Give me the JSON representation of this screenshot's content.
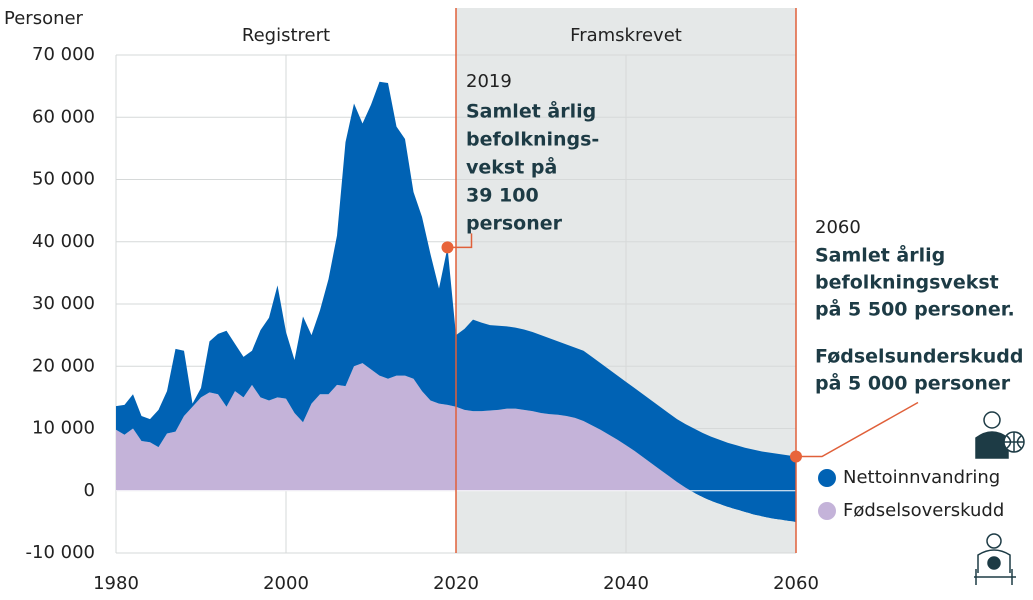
{
  "chart_data": {
    "type": "stacked_area",
    "ylabel": "Personer",
    "x": [
      1980,
      1981,
      1982,
      1983,
      1984,
      1985,
      1986,
      1987,
      1988,
      1989,
      1990,
      1991,
      1992,
      1993,
      1994,
      1995,
      1996,
      1997,
      1998,
      1999,
      2000,
      2001,
      2002,
      2003,
      2004,
      2005,
      2006,
      2007,
      2008,
      2009,
      2010,
      2011,
      2012,
      2013,
      2014,
      2015,
      2016,
      2017,
      2018,
      2019,
      2020,
      2021,
      2022,
      2023,
      2024,
      2025,
      2026,
      2027,
      2028,
      2029,
      2030,
      2031,
      2032,
      2033,
      2034,
      2035,
      2036,
      2037,
      2038,
      2039,
      2040,
      2041,
      2042,
      2043,
      2044,
      2045,
      2046,
      2047,
      2048,
      2049,
      2050,
      2051,
      2052,
      2053,
      2054,
      2055,
      2056,
      2057,
      2058,
      2059,
      2060
    ],
    "series": [
      {
        "name": "Nettoinnvandring",
        "color": "#0062b4",
        "values": [
          3800,
          4800,
          5500,
          4000,
          3700,
          6000,
          6800,
          13300,
          10500,
          500,
          1500,
          8200,
          9700,
          12200,
          7600,
          6500,
          5500,
          10800,
          13300,
          18000,
          10700,
          8500,
          17000,
          11000,
          13500,
          18500,
          24000,
          39200,
          42200,
          38500,
          42500,
          47200,
          47500,
          40000,
          38000,
          30000,
          28000,
          23500,
          18500,
          25300,
          11500,
          13000,
          14700,
          14200,
          13700,
          13500,
          13200,
          13000,
          12900,
          12700,
          12500,
          12200,
          11800,
          11500,
          11300,
          11300,
          11000,
          10700,
          10500,
          10300,
          10200,
          10100,
          10100,
          10100,
          10100,
          10100,
          10100,
          10200,
          10300,
          10300,
          10300,
          10300,
          10300,
          10300,
          10300,
          10400,
          10400,
          10500,
          10500,
          10500,
          10500
        ]
      },
      {
        "name": "Fødselsoverskudd",
        "color": "#c4b3d9",
        "values": [
          9800,
          9000,
          10000,
          8000,
          7800,
          7000,
          9200,
          9500,
          12000,
          13500,
          15000,
          15800,
          15500,
          13500,
          16000,
          15000,
          17000,
          15000,
          14500,
          15000,
          14800,
          12500,
          11000,
          14000,
          15500,
          15500,
          17000,
          16800,
          20000,
          20500,
          19500,
          18500,
          18000,
          18500,
          18500,
          18000,
          16000,
          14500,
          14000,
          13800,
          13500,
          13000,
          12800,
          12800,
          12900,
          13000,
          13200,
          13200,
          13000,
          12800,
          12500,
          12300,
          12200,
          12000,
          11700,
          11200,
          10500,
          9800,
          9000,
          8200,
          7300,
          6400,
          5400,
          4400,
          3400,
          2400,
          1400,
          500,
          -300,
          -1000,
          -1600,
          -2100,
          -2600,
          -3000,
          -3400,
          -3800,
          -4100,
          -4400,
          -4600,
          -4800,
          -5000
        ]
      }
    ],
    "xlim": [
      1980,
      2060
    ],
    "xticks": [
      1980,
      2000,
      2020,
      2040,
      2060
    ],
    "ylim": [
      -10000,
      70000
    ],
    "yticks": [
      {
        "value": -10000,
        "label": "-10 000"
      },
      0,
      {
        "value": 10000,
        "label": "10 000"
      },
      {
        "value": 20000,
        "label": "20 000"
      },
      {
        "value": 30000,
        "label": "30 000"
      },
      {
        "value": 40000,
        "label": "40 000"
      },
      {
        "value": 50000,
        "label": "50 000"
      },
      {
        "value": 60000,
        "label": "60 000"
      },
      {
        "value": 70000,
        "label": "70 000"
      }
    ],
    "grid": true,
    "regions": [
      {
        "label": "Registrert",
        "start": 1980,
        "end": 2020
      },
      {
        "label": "Framskrevet",
        "start": 2020,
        "end": 2060,
        "color": "#e5e8e8"
      }
    ],
    "annotations": [
      {
        "year": 2019,
        "value": 39100,
        "text": [
          "Samlet årlig",
          "befolknings-",
          "vekst på",
          "39 100",
          "personer"
        ]
      },
      {
        "year": 2060,
        "value": 5500,
        "text": [
          "Samlet årlig",
          "befolkningsvekst",
          "på 5 500 personer."
        ]
      }
    ],
    "note": [
      "Fødselsunderskudd",
      "på 5 000 personer"
    ]
  }
}
